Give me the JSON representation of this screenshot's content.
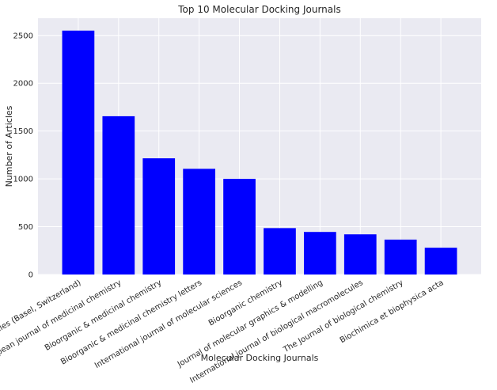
{
  "chart_data": {
    "type": "bar",
    "title": "Top 10 Molecular Docking Journals",
    "xlabel": "Molecular Docking Journals",
    "ylabel": "Number of Articles",
    "categories": [
      "Molecules (Basel, Switzerland)",
      "European journal of medicinal chemistry",
      "Bioorganic & medicinal chemistry",
      "Bioorganic & medicinal chemistry letters",
      "International journal of molecular sciences",
      "Bioorganic chemistry",
      "Journal of molecular graphics & modelling",
      "International journal of biological macromolecules",
      "The Journal of biological chemistry",
      "Biochimica et biophysica acta"
    ],
    "values": [
      2550,
      1655,
      1215,
      1105,
      1000,
      485,
      445,
      420,
      365,
      280
    ],
    "ylim": [
      0,
      2680
    ],
    "yticks": [
      0,
      500,
      1000,
      1500,
      2000,
      2500
    ],
    "bar_color": "#0000ff",
    "background_color": "#eaeaf2",
    "grid_color": "#ffffff",
    "grid": true,
    "x_tick_rotation_deg": 30
  }
}
